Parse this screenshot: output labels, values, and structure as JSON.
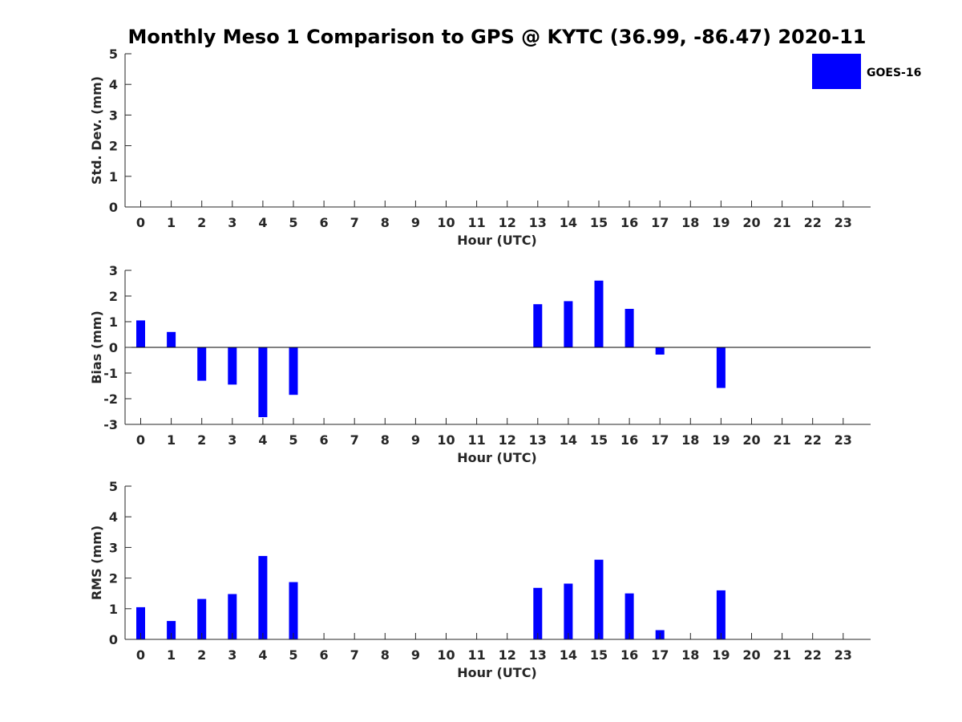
{
  "chart_data": {
    "title": "Monthly Meso 1 Comparison to GPS @ KYTC (36.99, -86.47) 2020-11",
    "type": "bar",
    "legend": {
      "label": "GOES-16",
      "placement": "top-right"
    },
    "colors": {
      "bar": "#0000ff",
      "axis": "#262626",
      "title": "#000000"
    },
    "panels": [
      {
        "id": "stddev",
        "ylabel": "Std. Dev. (mm)",
        "xlabel": "Hour (UTC)",
        "ylim": [
          0,
          5
        ],
        "yticks": [
          "0",
          "1",
          "2",
          "3",
          "4",
          "5"
        ],
        "categories": [
          "0",
          "1",
          "2",
          "3",
          "4",
          "5",
          "6",
          "7",
          "8",
          "9",
          "10",
          "11",
          "12",
          "13",
          "14",
          "15",
          "16",
          "17",
          "18",
          "19",
          "20",
          "21",
          "22",
          "23"
        ],
        "values": [
          null,
          null,
          null,
          null,
          null,
          null,
          null,
          null,
          null,
          null,
          null,
          null,
          null,
          null,
          null,
          null,
          null,
          null,
          null,
          null,
          null,
          null,
          null,
          null
        ],
        "zero_line": false
      },
      {
        "id": "bias",
        "ylabel": "Bias (mm)",
        "xlabel": "Hour (UTC)",
        "ylim": [
          -3,
          3
        ],
        "yticks": [
          "-3",
          "-2",
          "-1",
          "0",
          "1",
          "2",
          "3"
        ],
        "categories": [
          "0",
          "1",
          "2",
          "3",
          "4",
          "5",
          "6",
          "7",
          "8",
          "9",
          "10",
          "11",
          "12",
          "13",
          "14",
          "15",
          "16",
          "17",
          "18",
          "19",
          "20",
          "21",
          "22",
          "23"
        ],
        "values": [
          1.05,
          0.6,
          -1.3,
          -1.45,
          -2.72,
          -1.85,
          null,
          null,
          null,
          null,
          null,
          null,
          null,
          1.68,
          1.8,
          2.6,
          1.5,
          -0.28,
          null,
          -1.58,
          null,
          null,
          null,
          null
        ],
        "zero_line": true
      },
      {
        "id": "rms",
        "ylabel": "RMS (mm)",
        "xlabel": "Hour (UTC)",
        "ylim": [
          0,
          5
        ],
        "yticks": [
          "0",
          "1",
          "2",
          "3",
          "4",
          "5"
        ],
        "categories": [
          "0",
          "1",
          "2",
          "3",
          "4",
          "5",
          "6",
          "7",
          "8",
          "9",
          "10",
          "11",
          "12",
          "13",
          "14",
          "15",
          "16",
          "17",
          "18",
          "19",
          "20",
          "21",
          "22",
          "23"
        ],
        "values": [
          1.05,
          0.6,
          1.32,
          1.48,
          2.72,
          1.87,
          null,
          null,
          null,
          null,
          null,
          null,
          null,
          1.68,
          1.82,
          2.6,
          1.5,
          0.3,
          null,
          1.6,
          null,
          null,
          null,
          null
        ],
        "zero_line": false
      }
    ]
  }
}
